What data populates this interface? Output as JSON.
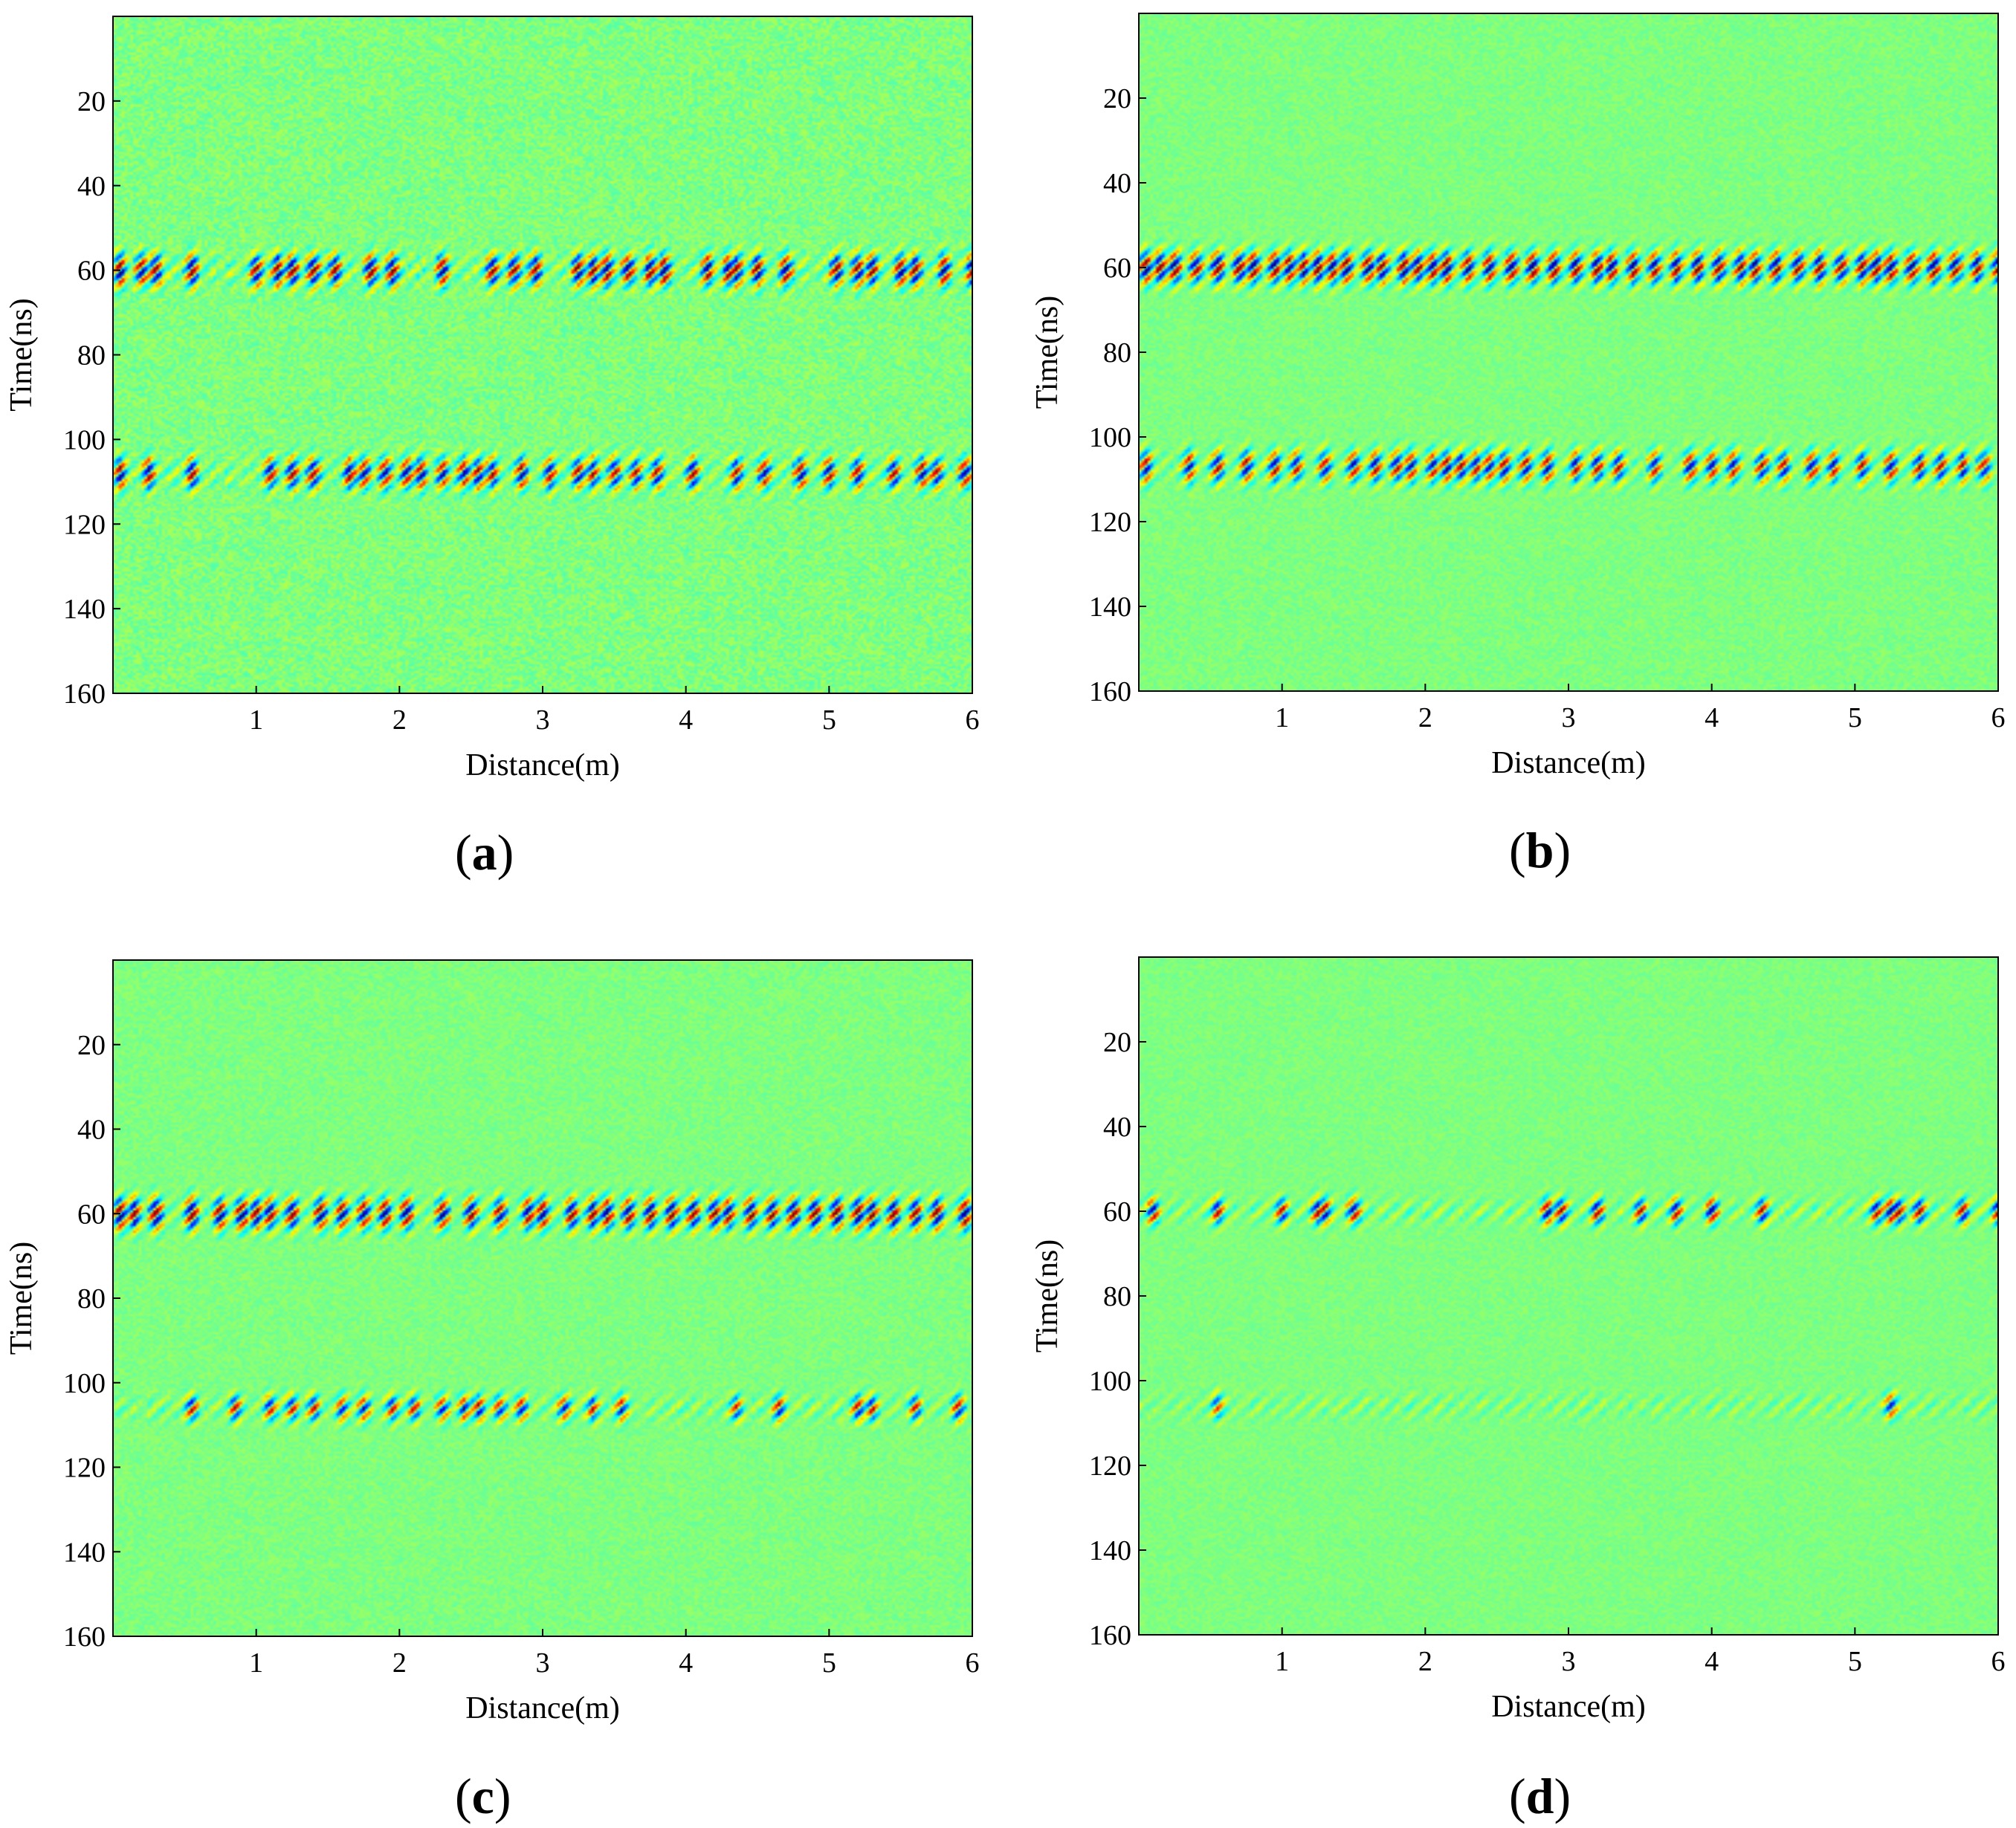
{
  "figure": {
    "panels": [
      "a",
      "b",
      "c",
      "d"
    ]
  },
  "chart_data": [
    {
      "panel_label": "(a)",
      "panel_letter": "a",
      "type": "heatmap",
      "xlabel": "Distance(m)",
      "ylabel": "Time(ns)",
      "xlim": [
        0,
        6
      ],
      "ylim": [
        0,
        160
      ],
      "y_reversed": true,
      "xticks": [
        1,
        2,
        3,
        4,
        5,
        6
      ],
      "yticks": [
        20,
        40,
        60,
        80,
        100,
        120,
        140,
        160
      ],
      "colormap": "jet",
      "background_color": "#33e0e4",
      "noise_level": 0.1,
      "reflection_bands": [
        {
          "time_ns": 60,
          "half_width_ns": 5,
          "intensity": 1.0,
          "distances_m": [
            0.05,
            0.2,
            0.3,
            0.55,
            1.0,
            1.15,
            1.25,
            1.4,
            1.55,
            1.8,
            1.95,
            2.3,
            2.65,
            2.8,
            2.95,
            3.25,
            3.35,
            3.45,
            3.6,
            3.75,
            3.85,
            4.15,
            4.3,
            4.35,
            4.5,
            4.7,
            5.05,
            5.2,
            5.3,
            5.5,
            5.6,
            5.8,
            6.0
          ]
        },
        {
          "time_ns": 108,
          "half_width_ns": 5,
          "intensity": 0.9,
          "distances_m": [
            0.05,
            0.25,
            0.55,
            1.1,
            1.25,
            1.4,
            1.65,
            1.75,
            1.9,
            2.05,
            2.15,
            2.3,
            2.45,
            2.55,
            2.65,
            2.85,
            3.05,
            3.25,
            3.35,
            3.5,
            3.65,
            3.8,
            4.05,
            4.35,
            4.55,
            4.8,
            5.0,
            5.2,
            5.45,
            5.65,
            5.75,
            5.95
          ]
        }
      ]
    },
    {
      "panel_label": "(b)",
      "panel_letter": "b",
      "type": "heatmap",
      "xlabel": "Distance(m)",
      "ylabel": "Time(ns)",
      "xlim": [
        0,
        6
      ],
      "ylim": [
        0,
        160
      ],
      "y_reversed": true,
      "xticks": [
        1,
        2,
        3,
        4,
        5,
        6
      ],
      "yticks": [
        20,
        40,
        60,
        80,
        100,
        120,
        140,
        160
      ],
      "colormap": "jet",
      "background_color": "#12ece4",
      "noise_level": 0.06,
      "reflection_bands": [
        {
          "time_ns": 60,
          "half_width_ns": 5,
          "intensity": 1.0,
          "distances_m": [
            0.05,
            0.15,
            0.25,
            0.4,
            0.55,
            0.7,
            0.8,
            0.95,
            1.05,
            1.15,
            1.25,
            1.35,
            1.45,
            1.6,
            1.7,
            1.85,
            1.95,
            2.05,
            2.15,
            2.3,
            2.45,
            2.6,
            2.75,
            2.9,
            3.05,
            3.2,
            3.3,
            3.45,
            3.6,
            3.75,
            3.9,
            4.05,
            4.2,
            4.3,
            4.45,
            4.6,
            4.75,
            4.9,
            5.05,
            5.15,
            5.25,
            5.4,
            5.55,
            5.7,
            5.85,
            6.0
          ]
        },
        {
          "time_ns": 107,
          "half_width_ns": 5,
          "intensity": 0.85,
          "distances_m": [
            0.05,
            0.35,
            0.55,
            0.75,
            0.95,
            1.1,
            1.3,
            1.5,
            1.65,
            1.8,
            1.9,
            2.05,
            2.15,
            2.25,
            2.35,
            2.45,
            2.55,
            2.7,
            2.85,
            3.05,
            3.2,
            3.35,
            3.6,
            3.85,
            4.0,
            4.15,
            4.35,
            4.5,
            4.7,
            4.85,
            5.05,
            5.25,
            5.45,
            5.6,
            5.75,
            5.9
          ]
        }
      ]
    },
    {
      "panel_label": "(c)",
      "panel_letter": "c",
      "type": "heatmap",
      "xlabel": "Distance(m)",
      "ylabel": "Time(ns)",
      "xlim": [
        0,
        6
      ],
      "ylim": [
        0,
        160
      ],
      "y_reversed": true,
      "xticks": [
        1,
        2,
        3,
        4,
        5,
        6
      ],
      "yticks": [
        20,
        40,
        60,
        80,
        100,
        120,
        140,
        160
      ],
      "colormap": "jet",
      "background_color": "#10ece4",
      "noise_level": 0.06,
      "reflection_bands": [
        {
          "time_ns": 60,
          "half_width_ns": 5,
          "intensity": 1.0,
          "distances_m": [
            0.05,
            0.15,
            0.3,
            0.55,
            0.75,
            0.9,
            1.0,
            1.1,
            1.25,
            1.45,
            1.6,
            1.75,
            1.9,
            2.05,
            2.3,
            2.5,
            2.7,
            2.9,
            3.0,
            3.2,
            3.35,
            3.45,
            3.6,
            3.75,
            3.9,
            4.05,
            4.2,
            4.3,
            4.45,
            4.6,
            4.75,
            4.9,
            5.05,
            5.2,
            5.3,
            5.45,
            5.6,
            5.75,
            5.95
          ]
        },
        {
          "time_ns": 106,
          "half_width_ns": 4,
          "intensity": 0.8,
          "distances_m": [
            0.55,
            0.85,
            1.1,
            1.25,
            1.4,
            1.6,
            1.75,
            1.95,
            2.1,
            2.3,
            2.45,
            2.55,
            2.7,
            2.85,
            3.15,
            3.35,
            3.55,
            4.35,
            4.65,
            5.2,
            5.3,
            5.6,
            5.9
          ]
        }
      ]
    },
    {
      "panel_label": "(d)",
      "panel_letter": "d",
      "type": "heatmap",
      "xlabel": "Distance(m)",
      "ylabel": "Time(ns)",
      "xlim": [
        0,
        6
      ],
      "ylim": [
        0,
        160
      ],
      "y_reversed": true,
      "xticks": [
        1,
        2,
        3,
        4,
        5,
        6
      ],
      "yticks": [
        20,
        40,
        60,
        80,
        100,
        120,
        140,
        160
      ],
      "colormap": "jet",
      "background_color": "#10ece4",
      "noise_level": 0.05,
      "reflection_bands": [
        {
          "time_ns": 60,
          "half_width_ns": 4,
          "intensity": 0.9,
          "distances_m": [
            0.1,
            0.55,
            1.0,
            1.25,
            1.3,
            1.5,
            2.85,
            2.95,
            3.2,
            3.5,
            3.75,
            4.0,
            4.35,
            5.15,
            5.25,
            5.3,
            5.45,
            5.75,
            6.0
          ]
        },
        {
          "time_ns": 106,
          "half_width_ns": 4,
          "intensity": 0.7,
          "distances_m": [
            0.55,
            5.25
          ]
        }
      ]
    }
  ]
}
